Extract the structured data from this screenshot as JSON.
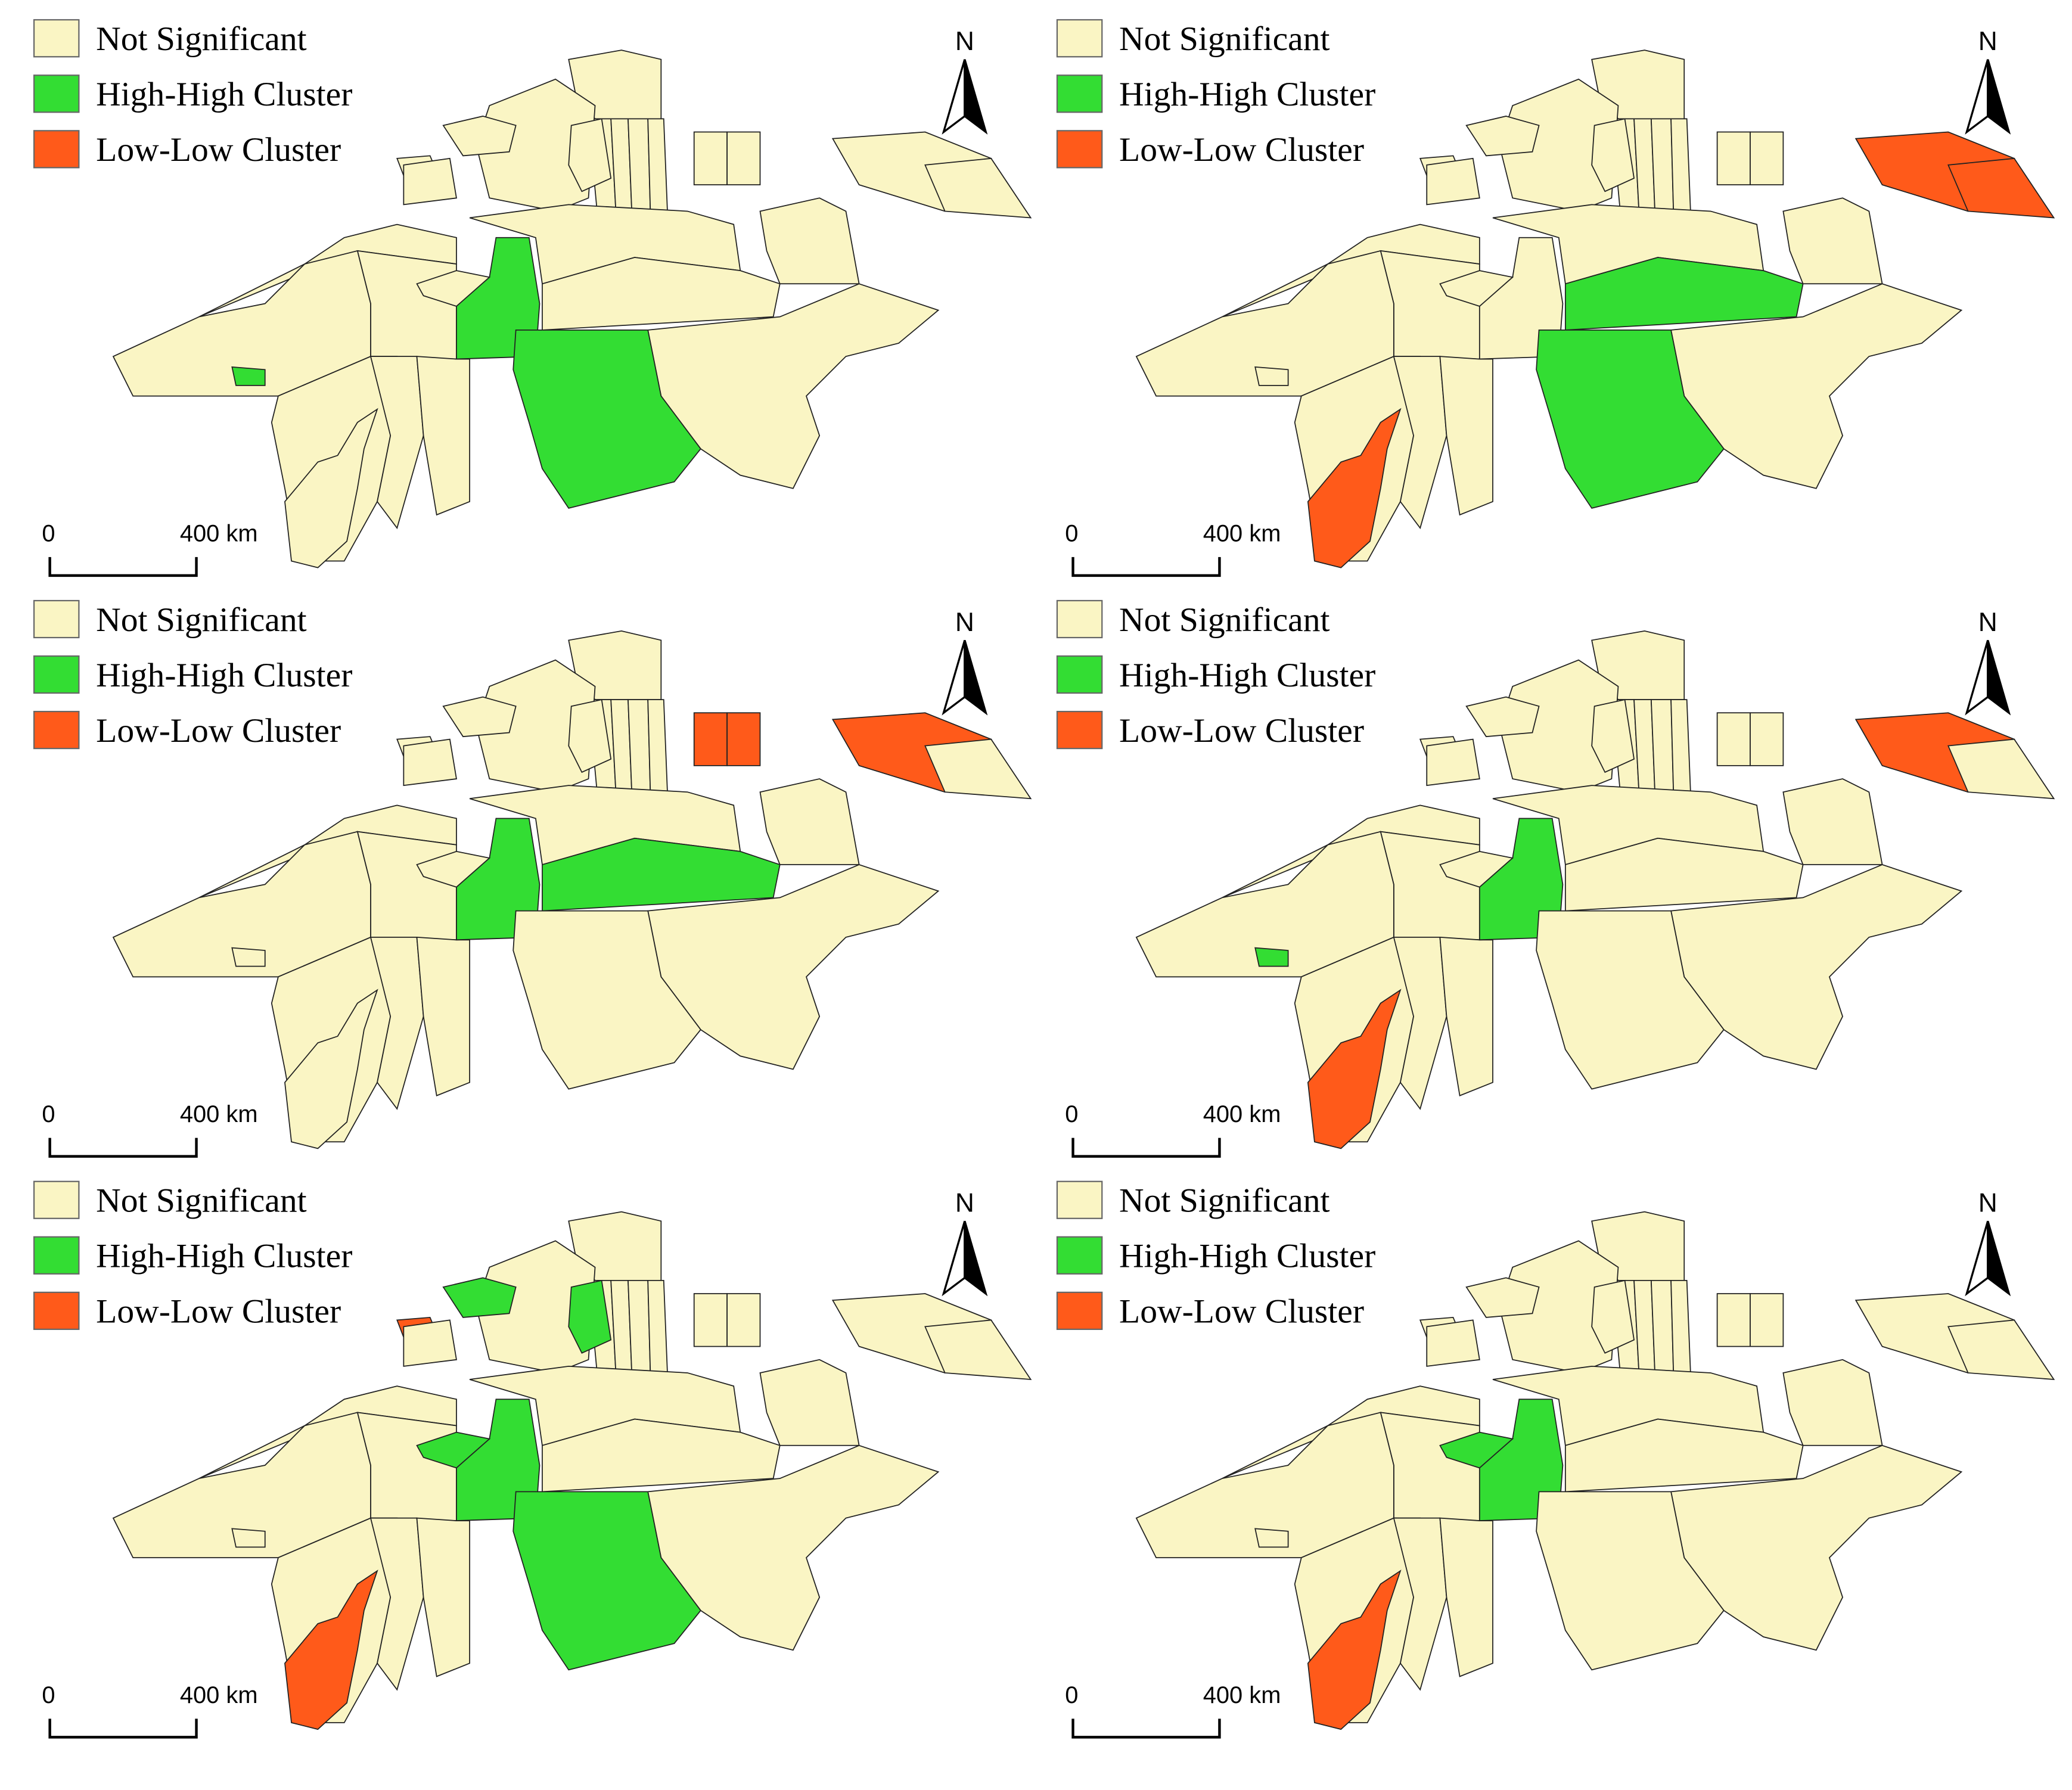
{
  "panels": [
    {
      "legend": [
        {
          "label": "Not Significant",
          "color": "#faf5c4"
        },
        {
          "label": "High-High Cluster",
          "color": "#33dd33"
        },
        {
          "label": "Low-Low Cluster",
          "color": "#ff5a1a"
        }
      ],
      "north": "N",
      "scale": [
        "0",
        "400 km"
      ]
    },
    {
      "legend": [
        {
          "label": "Not Significant",
          "color": "#faf5c4"
        },
        {
          "label": "High-High Cluster",
          "color": "#33dd33"
        },
        {
          "label": "Low-Low Cluster",
          "color": "#ff5a1a"
        }
      ],
      "north": "N",
      "scale": [
        "0",
        "400 km"
      ]
    },
    {
      "legend": [
        {
          "label": "Not Significant",
          "color": "#faf5c4"
        },
        {
          "label": "High-High Cluster",
          "color": "#33dd33"
        },
        {
          "label": "Low-Low Cluster",
          "color": "#ff5a1a"
        }
      ],
      "north": "N",
      "scale": [
        "0",
        "400 km"
      ]
    },
    {
      "legend": [
        {
          "label": "Not Significant",
          "color": "#faf5c4"
        },
        {
          "label": "High-High Cluster",
          "color": "#33dd33"
        },
        {
          "label": "Low-Low Cluster",
          "color": "#ff5a1a"
        }
      ],
      "north": "N",
      "scale": [
        "0",
        "400 km"
      ]
    },
    {
      "legend": [
        {
          "label": "Not Significant",
          "color": "#faf5c4"
        },
        {
          "label": "High-High Cluster",
          "color": "#33dd33"
        },
        {
          "label": "Low-Low Cluster",
          "color": "#ff5a1a"
        }
      ],
      "north": "N",
      "scale": [
        "0",
        "400 km"
      ]
    },
    {
      "legend": [
        {
          "label": "Not Significant",
          "color": "#faf5c4"
        },
        {
          "label": "High-High Cluster",
          "color": "#33dd33"
        },
        {
          "label": "Low-Low Cluster",
          "color": "#ff5a1a"
        }
      ],
      "north": "N",
      "scale": [
        "0",
        "400 km"
      ]
    }
  ]
}
